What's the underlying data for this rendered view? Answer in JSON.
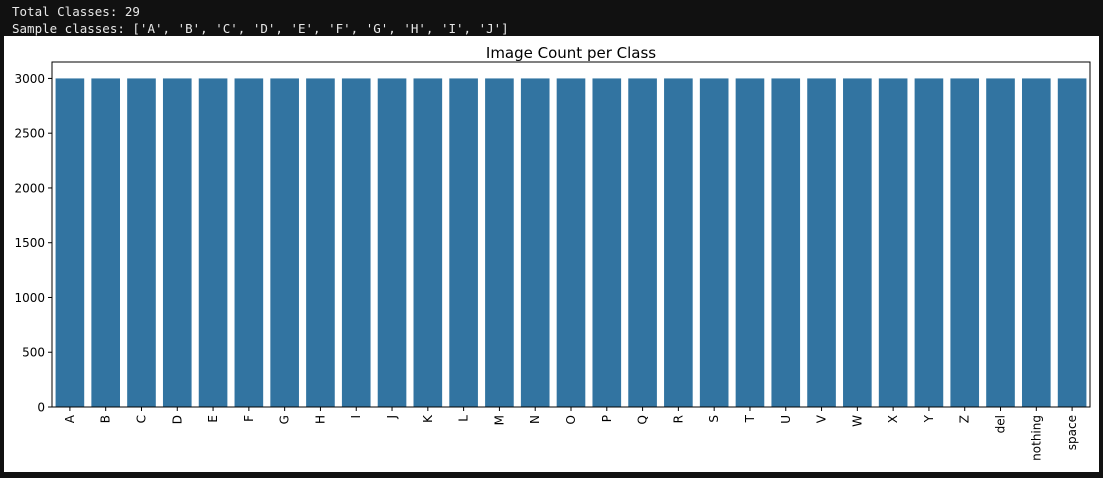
{
  "console": {
    "line1": "Total Classes: 29",
    "line2": "Sample classes: ['A', 'B', 'C', 'D', 'E', 'F', 'G', 'H', 'I', 'J']"
  },
  "chart_data": {
    "type": "bar",
    "title": "Image Count per Class",
    "xlabel": "",
    "ylabel": "",
    "categories": [
      "A",
      "B",
      "C",
      "D",
      "E",
      "F",
      "G",
      "H",
      "I",
      "J",
      "K",
      "L",
      "M",
      "N",
      "O",
      "P",
      "Q",
      "R",
      "S",
      "T",
      "U",
      "V",
      "W",
      "X",
      "Y",
      "Z",
      "del",
      "nothing",
      "space"
    ],
    "values": [
      3000,
      3000,
      3000,
      3000,
      3000,
      3000,
      3000,
      3000,
      3000,
      3000,
      3000,
      3000,
      3000,
      3000,
      3000,
      3000,
      3000,
      3000,
      3000,
      3000,
      3000,
      3000,
      3000,
      3000,
      3000,
      3000,
      3000,
      3000,
      3000
    ],
    "ylim": [
      0,
      3150
    ],
    "yticks": [
      0,
      500,
      1000,
      1500,
      2000,
      2500,
      3000
    ],
    "grid": false,
    "legend": "none",
    "bar_color": "#3274a1"
  }
}
